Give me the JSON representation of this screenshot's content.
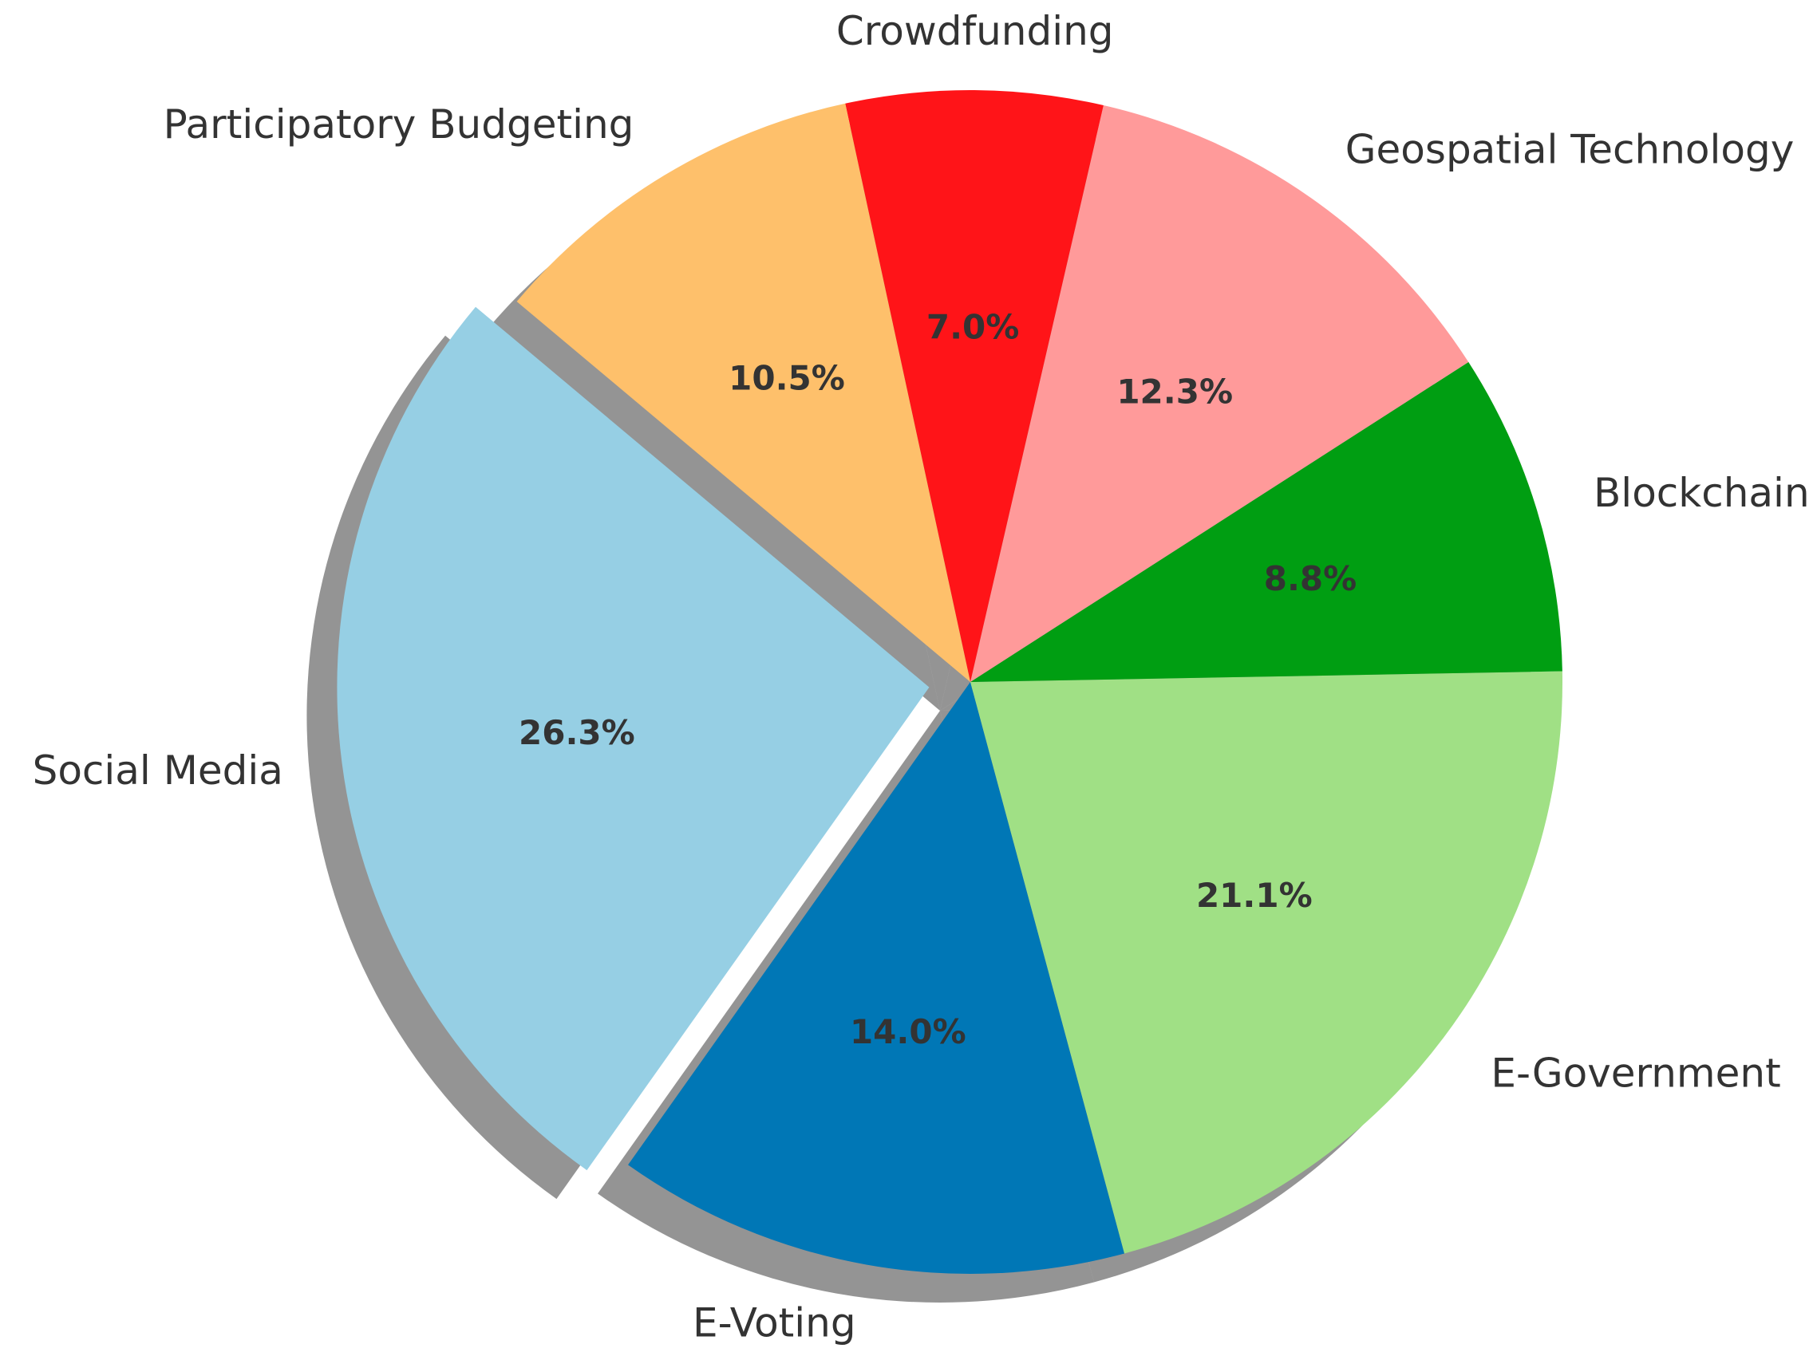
{
  "chart_data": {
    "type": "pie",
    "title": "",
    "categories": [
      "Social Media",
      "E-Voting",
      "E-Government",
      "Blockchain",
      "Geospatial Technology",
      "Crowdfunding",
      "Participatory Budgeting"
    ],
    "values": [
      26.3,
      14.0,
      21.1,
      8.8,
      12.3,
      7.0,
      10.5
    ],
    "value_labels": [
      "26.3%",
      "14.0%",
      "21.1%",
      "8.8%",
      "12.3%",
      "7.0%",
      "10.5%"
    ],
    "colors": [
      "#96cfe4",
      "#0077b6",
      "#a0e085",
      "#009e12",
      "#ff9a9a",
      "#ff1418",
      "#fec06b"
    ],
    "exploded": [
      "Social Media"
    ],
    "shadow": true,
    "start_angle_deg": 140,
    "direction": "counterclockwise"
  }
}
